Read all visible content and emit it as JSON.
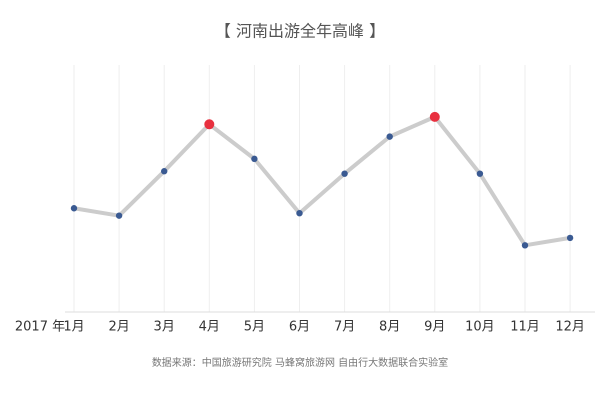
{
  "chart_data": {
    "type": "line",
    "title": "【 河南出游全年高峰 】",
    "x_label": "2017 年",
    "categories": [
      "1月",
      "2月",
      "3月",
      "4月",
      "5月",
      "6月",
      "7月",
      "8月",
      "9月",
      "10月",
      "11月",
      "12月"
    ],
    "values": [
      42,
      39,
      57,
      76,
      62,
      40,
      56,
      71,
      79,
      56,
      27,
      30
    ],
    "color": "#cccccc",
    "point_colors": [
      "#3a5a92",
      "#3a5a92",
      "#3a5a92",
      "#e8303f",
      "#3a5a92",
      "#3a5a92",
      "#3a5a92",
      "#3a5a92",
      "#e8303f",
      "#3a5a92",
      "#3a5a92",
      "#3a5a92"
    ],
    "ylim": [
      0,
      100
    ],
    "grid": true,
    "source": "数据来源：中国旅游研究院 马蜂窝旅游网 自由行大数据联合实验室"
  }
}
